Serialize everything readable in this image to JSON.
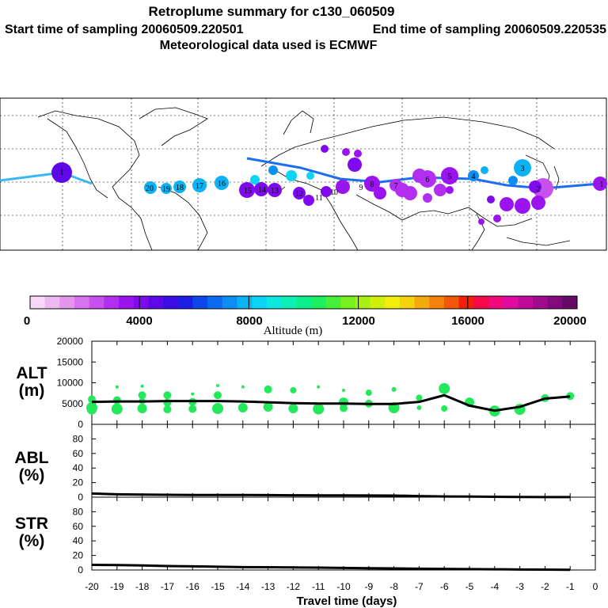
{
  "title": {
    "line1": "Retroplume summary for c130_060509",
    "line2_start": "Start time of sampling 20060509.220501",
    "line2_end": "End time of sampling 20060509.220535",
    "line3": "Meteorological data used is ECMWF"
  },
  "colorbar": {
    "label": "Altitude (m)",
    "ticks": [
      "0",
      "4000",
      "8000",
      "12000",
      "16000",
      "20000"
    ],
    "colors": [
      "#f7d9f7",
      "#efb8f2",
      "#e496ef",
      "#d773ef",
      "#c850ef",
      "#b22ef0",
      "#9a14f0",
      "#7f0aee",
      "#5e08ea",
      "#3c0ce6",
      "#1c1ee6",
      "#0d46ea",
      "#0c6aee",
      "#0c8ef2",
      "#0cb2f4",
      "#0cd4f4",
      "#0ce8e0",
      "#0cf0b8",
      "#0cf08c",
      "#1cf060",
      "#46f03a",
      "#78f020",
      "#a8f014",
      "#d0f00c",
      "#f0ee0c",
      "#f4d20c",
      "#f4aa0c",
      "#f4820c",
      "#f4560c",
      "#f4200c",
      "#f40a48",
      "#f00a7c",
      "#e00aa0",
      "#c00a9c",
      "#a00a8c",
      "#820a7c",
      "#640a66"
    ]
  },
  "map": {
    "plume_labels": [
      "1",
      "20",
      "19",
      "18",
      "17",
      "16",
      "15",
      "14",
      "13",
      "12",
      "11",
      "10",
      "9",
      "8",
      "7",
      "6",
      "5",
      "4",
      "3",
      "2",
      "1"
    ]
  },
  "panels": [
    {
      "label_line1": "ALT",
      "label_line2": "(m)",
      "yticks": [
        "20000",
        "15000",
        "10000",
        "5000",
        "0"
      ]
    },
    {
      "label_line1": "ABL",
      "label_line2": "(%)",
      "yticks": [
        "80",
        "60",
        "40",
        "20",
        "0"
      ]
    },
    {
      "label_line1": "STR",
      "label_line2": "(%)",
      "yticks": [
        "80",
        "60",
        "40",
        "20",
        "0"
      ]
    }
  ],
  "xaxis": {
    "label": "Travel time (days)",
    "ticks": [
      "-20",
      "-19",
      "-18",
      "-17",
      "-16",
      "-15",
      "-14",
      "-13",
      "-12",
      "-11",
      "-10",
      "-9",
      "-8",
      "-7",
      "-6",
      "-5",
      "-4",
      "-3",
      "-2",
      "-1",
      "0"
    ]
  },
  "chart_data": [
    {
      "type": "line",
      "title": "ALT (m)",
      "xlabel": "Travel time (days)",
      "ylabel": "ALT (m)",
      "xlim": [
        -20,
        0
      ],
      "ylim": [
        0,
        20000
      ],
      "series": [
        {
          "name": "mean altitude",
          "x": [
            -20,
            -19,
            -18,
            -17,
            -16,
            -15,
            -14,
            -13,
            -12,
            -11,
            -10,
            -9,
            -8,
            -7,
            -6,
            -5,
            -4,
            -3,
            -2,
            -1
          ],
          "values": [
            5400,
            5500,
            5500,
            5600,
            5600,
            5600,
            5500,
            5300,
            5100,
            5000,
            5000,
            4900,
            4900,
            5400,
            7000,
            4500,
            3300,
            4200,
            6200,
            6700
          ]
        }
      ],
      "points": {
        "x": [
          -20,
          -20,
          -20,
          -19,
          -19,
          -19,
          -18,
          -18,
          -18,
          -18,
          -17,
          -17,
          -17,
          -16,
          -16,
          -16,
          -15,
          -15,
          -15,
          -14,
          -14,
          -13,
          -13,
          -12,
          -12,
          -11,
          -11,
          -10,
          -10,
          -10,
          -9,
          -9,
          -8,
          -8,
          -7,
          -7,
          -6,
          -6,
          -5,
          -4,
          -3,
          -2,
          -1
        ],
        "y": [
          6000,
          4000,
          3500,
          9000,
          5800,
          3700,
          9200,
          7000,
          5600,
          3800,
          7000,
          5200,
          3600,
          7300,
          5400,
          3700,
          9300,
          7000,
          3800,
          9000,
          4000,
          8400,
          4200,
          8200,
          3800,
          9000,
          3700,
          8200,
          5300,
          3900,
          7600,
          5000,
          8400,
          4000,
          6400,
          4000,
          8600,
          3800,
          5300,
          3200,
          3600,
          6300,
          6800
        ],
        "sizes": [
          5,
          7,
          6,
          2,
          5,
          7,
          2,
          5,
          4,
          6,
          5,
          5,
          5,
          2,
          5,
          5,
          2,
          5,
          7,
          2,
          6,
          5,
          6,
          4,
          6,
          2,
          7,
          2,
          6,
          5,
          4,
          5,
          3,
          7,
          4,
          3,
          7,
          4,
          6,
          7,
          7,
          5,
          5
        ]
      }
    },
    {
      "type": "line",
      "title": "ABL (%)",
      "xlabel": "Travel time (days)",
      "ylabel": "ABL (%)",
      "xlim": [
        -20,
        0
      ],
      "ylim": [
        0,
        100
      ],
      "series": [
        {
          "name": "ABL fraction",
          "x": [
            -20,
            -19,
            -18,
            -17,
            -16,
            -15,
            -14,
            -13,
            -12,
            -11,
            -10,
            -9,
            -8,
            -7,
            -6,
            -5,
            -4,
            -3,
            -2,
            -1
          ],
          "values": [
            5,
            4,
            3.5,
            3.3,
            3,
            3,
            3,
            2.8,
            2.6,
            2.5,
            2.5,
            2.3,
            2.2,
            1.5,
            1,
            0.8,
            0.5,
            0.3,
            0.2,
            0.1
          ]
        }
      ]
    },
    {
      "type": "line",
      "title": "STR (%)",
      "xlabel": "Travel time (days)",
      "ylabel": "STR (%)",
      "xlim": [
        -20,
        0
      ],
      "ylim": [
        0,
        100
      ],
      "series": [
        {
          "name": "stratospheric fraction",
          "x": [
            -20,
            -19,
            -18,
            -17,
            -16,
            -15,
            -14,
            -13,
            -12,
            -11,
            -10,
            -9,
            -8,
            -7,
            -6,
            -5,
            -4,
            -3,
            -2,
            -1
          ],
          "values": [
            7,
            6.8,
            6.3,
            5.5,
            5,
            4.5,
            4,
            3.8,
            3.5,
            3.2,
            2.8,
            2.5,
            2.2,
            1.8,
            1.5,
            1.2,
            1,
            0.7,
            0.5,
            0.3
          ]
        }
      ]
    }
  ]
}
